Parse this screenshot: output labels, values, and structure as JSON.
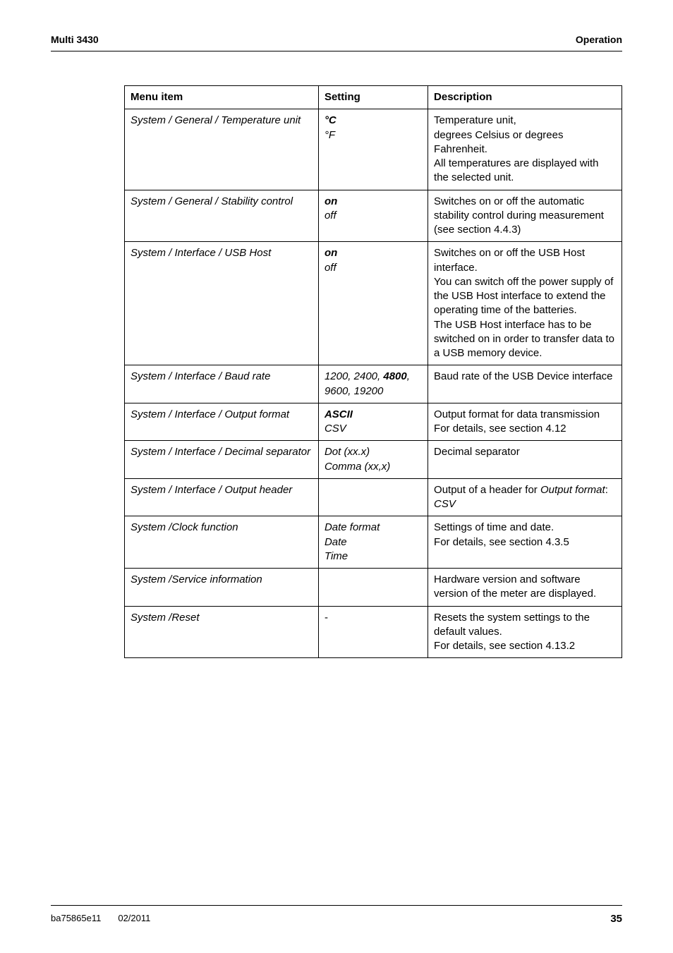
{
  "header": {
    "left": "Multi 3430",
    "right": "Operation"
  },
  "table": {
    "headers": {
      "menu": "Menu item",
      "setting": "Setting",
      "description": "Description"
    },
    "rows": [
      {
        "menu_html": "<span class='italic'>System / General / Temperature unit</span>",
        "setting_html": "<span class='bold-italic'>°C</span><br><span class='italic'>°F</span>",
        "desc_html": "Temperature unit,<br>degrees Celsius or degrees Fahrenheit.<br>All temperatures are displayed with the selected unit."
      },
      {
        "menu_html": "<span class='italic'>System / General / Stability control</span>",
        "setting_html": "<span class='bold-italic'>on</span><br><span class='italic'>off</span>",
        "desc_html": "Switches on or off the automatic stability control during measurement (see section 4.4.3)"
      },
      {
        "menu_html": "<span class='italic'>System / Interface / USB Host</span>",
        "setting_html": "<span class='bold-italic'>on</span><br><span class='italic'>off</span>",
        "desc_html": "Switches on or off the USB Host interface.<br>You can switch off the power supply of the USB Host interface to extend the operating time of the batteries.<br>The USB Host interface has to be switched on in order to transfer data to a USB memory device."
      },
      {
        "menu_html": "<span class='italic'>System / Interface / Baud rate</span>",
        "setting_html": "<span class='italic'>1200, 2400, </span><span class='bold-italic'>4800</span><span class='italic'>, 9600, 19200</span>",
        "desc_html": "Baud rate of the USB Device interface"
      },
      {
        "menu_html": "<span class='italic'>System / Interface / Output format</span>",
        "setting_html": "<span class='bold-italic'>ASCII</span><br><span class='italic'>CSV</span>",
        "desc_html": "Output format for data transmission<br>For details, see section 4.12"
      },
      {
        "menu_html": "<span class='italic'>System / Interface / Decimal separator</span>",
        "setting_html": "<span class='italic'>Dot (xx.x)<br>Comma (xx,x)</span>",
        "desc_html": "Decimal separator"
      },
      {
        "menu_html": "<span class='italic'>System / Interface / Output header</span>",
        "setting_html": "",
        "desc_html": "Output of a header for <span class='italic'>Output format</span>: <span class='italic'>CSV</span>"
      },
      {
        "menu_html": "<span class='italic'>System /Clock function</span>",
        "setting_html": "<span class='italic'>Date format<br>Date<br>Time</span>",
        "desc_html": "Settings of time and date.<br>For details, see section 4.3.5"
      },
      {
        "menu_html": "<span class='italic'>System /Service information</span>",
        "setting_html": "",
        "desc_html": "Hardware version and software version of the meter are displayed."
      },
      {
        "menu_html": "<span class='italic'>System /Reset</span>",
        "setting_html": "-",
        "desc_html": "Resets the system settings to the default values.<br>For details, see section 4.13.2"
      }
    ]
  },
  "footer": {
    "doc_id": "ba75865e11",
    "date": "02/2011",
    "page": "35"
  }
}
